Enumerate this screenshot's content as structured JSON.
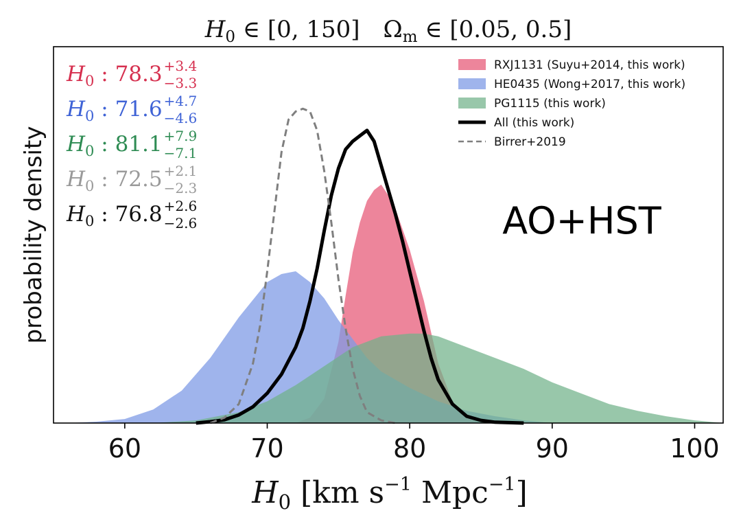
{
  "chart_data": {
    "type": "area",
    "title": {
      "h0_symbol": "H",
      "h0_sub": "0",
      "h0_range": " ∈ [0, 150]",
      "om_symbol": "Ω",
      "om_sub": "m",
      "om_range": " ∈ [0.05, 0.5]"
    },
    "xlabel": {
      "symbol": "H",
      "sub": "0",
      "unit_open": " [km s",
      "exp1": "−1",
      "unit_mid": " Mpc",
      "exp2": "−1",
      "unit_close": "]"
    },
    "ylabel": "probability density",
    "annotation": "AO+HST",
    "xlim": [
      55,
      102
    ],
    "ylim": [
      0,
      1.25
    ],
    "xticks": [
      60,
      70,
      80,
      90,
      100
    ],
    "grid": false,
    "legend_position": "top-right",
    "series": [
      {
        "name": "RXJ1131 (Suyu+2014, this work)",
        "style": "fill",
        "color": "#e8637f",
        "opacity": 0.78,
        "x": [
          72,
          73,
          74,
          75,
          75.5,
          76,
          76.5,
          77,
          77.5,
          78,
          78.5,
          79,
          80,
          81,
          82,
          83,
          84,
          85
        ],
        "y": [
          0.0,
          0.02,
          0.09,
          0.3,
          0.47,
          0.63,
          0.74,
          0.82,
          0.86,
          0.88,
          0.84,
          0.79,
          0.64,
          0.45,
          0.22,
          0.08,
          0.02,
          0.0
        ]
      },
      {
        "name": "HE0435 (Wong+2017, this work)",
        "style": "fill",
        "color": "#7f9be6",
        "opacity": 0.75,
        "x": [
          56,
          58,
          60,
          62,
          64,
          66,
          68,
          70,
          71,
          72,
          73,
          74,
          75,
          76,
          77,
          78,
          80,
          82,
          84,
          86,
          88,
          90
        ],
        "y": [
          0.0,
          0.005,
          0.015,
          0.05,
          0.12,
          0.24,
          0.39,
          0.52,
          0.55,
          0.56,
          0.52,
          0.46,
          0.38,
          0.31,
          0.24,
          0.19,
          0.13,
          0.08,
          0.045,
          0.025,
          0.01,
          0.0
        ]
      },
      {
        "name": "PG1115 (this work)",
        "style": "fill",
        "color": "#70b289",
        "opacity": 0.72,
        "x": [
          62,
          65,
          68,
          70,
          72,
          74,
          76,
          78,
          80,
          81,
          82,
          84,
          86,
          88,
          90,
          92,
          94,
          96,
          98,
          100,
          102
        ],
        "y": [
          0.0,
          0.01,
          0.04,
          0.08,
          0.14,
          0.21,
          0.28,
          0.32,
          0.33,
          0.33,
          0.32,
          0.28,
          0.24,
          0.2,
          0.15,
          0.11,
          0.07,
          0.045,
          0.025,
          0.01,
          0.0
        ]
      },
      {
        "name": "All (this work)",
        "style": "solid",
        "color": "#000000",
        "x": [
          65,
          66,
          67,
          68,
          69,
          70,
          71,
          72,
          72.5,
          73,
          73.5,
          74,
          74.5,
          75,
          75.5,
          76,
          76.5,
          77,
          77.5,
          78,
          78.5,
          79,
          79.5,
          80,
          80.5,
          81,
          81.5,
          82,
          83,
          84,
          85,
          86,
          88
        ],
        "y": [
          0.0,
          0.005,
          0.012,
          0.03,
          0.06,
          0.11,
          0.18,
          0.28,
          0.35,
          0.45,
          0.57,
          0.71,
          0.84,
          0.94,
          1.01,
          1.04,
          1.06,
          1.08,
          1.04,
          0.95,
          0.86,
          0.77,
          0.67,
          0.56,
          0.45,
          0.34,
          0.24,
          0.16,
          0.07,
          0.025,
          0.01,
          0.003,
          0.0
        ]
      },
      {
        "name": "Birrer+2019",
        "style": "dashed",
        "color": "#7f7f7f",
        "x": [
          66,
          67,
          68,
          69,
          69.5,
          70,
          70.5,
          71,
          71.5,
          72,
          72.5,
          73,
          73.5,
          74,
          74.5,
          75,
          75.5,
          76,
          76.5,
          77,
          78,
          79
        ],
        "y": [
          0.0,
          0.02,
          0.07,
          0.22,
          0.36,
          0.56,
          0.78,
          1.0,
          1.12,
          1.15,
          1.16,
          1.15,
          1.08,
          0.93,
          0.74,
          0.53,
          0.35,
          0.2,
          0.1,
          0.04,
          0.01,
          0.0
        ]
      }
    ],
    "estimates": [
      {
        "symbol": "H",
        "sub": "0",
        "value": " : 78.3",
        "sup": "+3.4",
        "sub_err": "−3.3",
        "color": "#d6304f"
      },
      {
        "symbol": "H",
        "sub": "0",
        "value": " : 71.6",
        "sup": "+4.7",
        "sub_err": "−4.6",
        "color": "#3f63d6"
      },
      {
        "symbol": "H",
        "sub": "0",
        "value": " : 81.1",
        "sup": "+7.9",
        "sub_err": "−7.1",
        "color": "#2f8c54"
      },
      {
        "symbol": "H",
        "sub": "0",
        "value": " : 72.5",
        "sup": "+2.1",
        "sub_err": "−2.3",
        "color": "#9a9a9a"
      },
      {
        "symbol": "H",
        "sub": "0",
        "value": " : 76.8",
        "sup": "+2.6",
        "sub_err": "−2.6",
        "color": "#111111"
      }
    ]
  }
}
